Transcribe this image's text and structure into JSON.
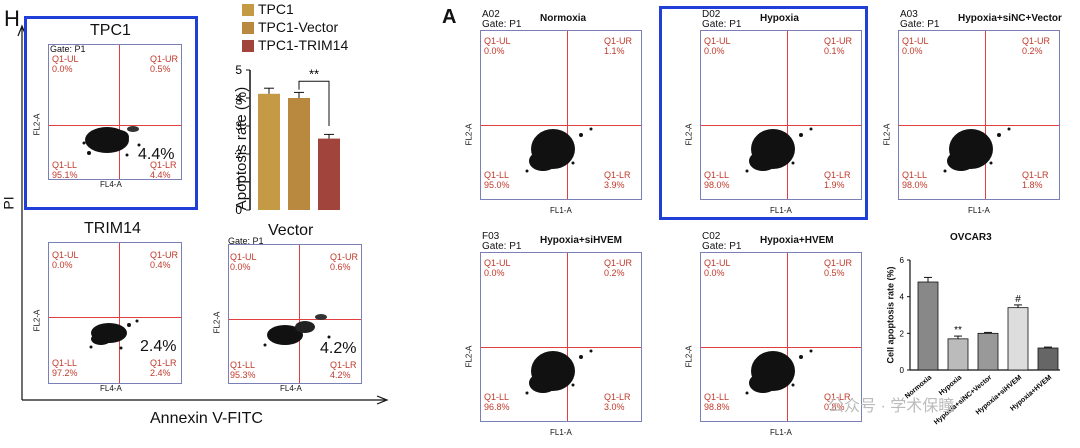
{
  "left": {
    "panel_letter": "H",
    "y_axis_label": "PI",
    "x_axis_label": "Annexin V-FITC",
    "plots": [
      {
        "title": "TPC1",
        "gate": "Gate: P1",
        "ul": "Q1-UL\n0.0%",
        "ur": "Q1-UR\n0.5%",
        "ll": "Q1-LL\n95.1%",
        "lr": "Q1-LR\n4.4%",
        "big": "4.4%",
        "xlab": "FL4-A",
        "ylab": "FL2-A"
      },
      {
        "title": "TRIM14",
        "gate": "Gate: P1",
        "ul": "Q1-UL\n0.0%",
        "ur": "Q1-UR\n0.4%",
        "ll": "Q1-LL\n97.2%",
        "lr": "Q1-LR\n2.4%",
        "big": "2.4%",
        "xlab": "FL4-A",
        "ylab": "FL2-A"
      },
      {
        "title": "Vector",
        "gate": "Gate: P1",
        "ul": "Q1-UL\n0.0%",
        "ur": "Q1-UR\n0.6%",
        "ll": "Q1-LL\n95.3%",
        "lr": "Q1-LR\n4.2%",
        "big": "4.2%",
        "xlab": "FL4-A",
        "ylab": "FL2-A"
      }
    ]
  },
  "right": {
    "panel_letter": "A",
    "plots": [
      {
        "id": "A02",
        "title": "Normoxia",
        "gate": "Gate: P1",
        "ul": "Q1-UL\n0.0%",
        "ur": "Q1-UR\n1.1%",
        "ll": "Q1-LL\n95.0%",
        "lr": "Q1-LR\n3.9%",
        "xlab": "FL1-A",
        "ylab": "FL2-A"
      },
      {
        "id": "D02",
        "title": "Hypoxia",
        "gate": "Gate: P1",
        "ul": "Q1-UL\n0.0%",
        "ur": "Q1-UR\n0.1%",
        "ll": "Q1-LL\n98.0%",
        "lr": "Q1-LR\n1.9%",
        "xlab": "FL1-A",
        "ylab": "FL2-A"
      },
      {
        "id": "A03",
        "title": "Hypoxia+siNC+Vector",
        "gate": "Gate: P1",
        "ul": "Q1-UL\n0.0%",
        "ur": "Q1-UR\n0.2%",
        "ll": "Q1-LL\n98.0%",
        "lr": "Q1-LR\n1.8%",
        "xlab": "FL1-A",
        "ylab": "FL2-A"
      },
      {
        "id": "F03",
        "title": "Hypoxia+siHVEM",
        "gate": "Gate: P1",
        "ul": "Q1-UL\n0.0%",
        "ur": "Q1-UR\n0.2%",
        "ll": "Q1-LL\n96.8%",
        "lr": "Q1-LR\n3.0%",
        "xlab": "FL1-A",
        "ylab": "FL2-A"
      },
      {
        "id": "C02",
        "title": "Hypoxia+HVEM",
        "gate": "Gate: P1",
        "ul": "Q1-UL\n0.0%",
        "ur": "Q1-UR\n0.5%",
        "ll": "Q1-LL\n98.8%",
        "lr": "Q1-LR\n0.8%",
        "xlab": "FL1-A",
        "ylab": "FL2-A"
      }
    ]
  },
  "watermark": "公众号 · 学术保瞳",
  "colors": {
    "tpc1": "#c49a45",
    "vector": "#b8893e",
    "trim14": "#a0443c",
    "frame": "#1f3fd6",
    "quadrant": "#e04040"
  },
  "chart_data": [
    {
      "type": "bar",
      "title": "",
      "xlabel": "",
      "ylabel": "Apoptosis rate (%)",
      "ylim": [
        0,
        5
      ],
      "yticks": [
        "0",
        "1",
        "2",
        "3",
        "4",
        "5"
      ],
      "legend": [
        "TPC1",
        "TPC1-Vector",
        "TPC1-TRIM14"
      ],
      "legend_position": "top",
      "categories": [
        "TPC1",
        "TPC1-Vector",
        "TPC1-TRIM14"
      ],
      "values": [
        4.15,
        4.0,
        2.55
      ],
      "errors": [
        0.2,
        0.2,
        0.15
      ],
      "colors": [
        "#c49a45",
        "#b8893e",
        "#a0443c"
      ],
      "annotation": "**"
    },
    {
      "type": "bar",
      "title": "OVCAR3",
      "xlabel": "",
      "ylabel": "Cell apoptosis rate (%)",
      "ylim": [
        0,
        6
      ],
      "yticks": [
        "0",
        "2",
        "4",
        "6"
      ],
      "categories": [
        "Normoxia",
        "Hypoxia",
        "Hypoxia+siNC+Vector",
        "Hypoxia+siHVEM",
        "Hypoxia+HVEM"
      ],
      "values": [
        4.8,
        1.7,
        2.0,
        3.4,
        1.2
      ],
      "errors": [
        0.25,
        0.15,
        0.05,
        0.15,
        0.05
      ],
      "annotations": [
        "",
        "**",
        "",
        "#",
        ""
      ]
    }
  ]
}
